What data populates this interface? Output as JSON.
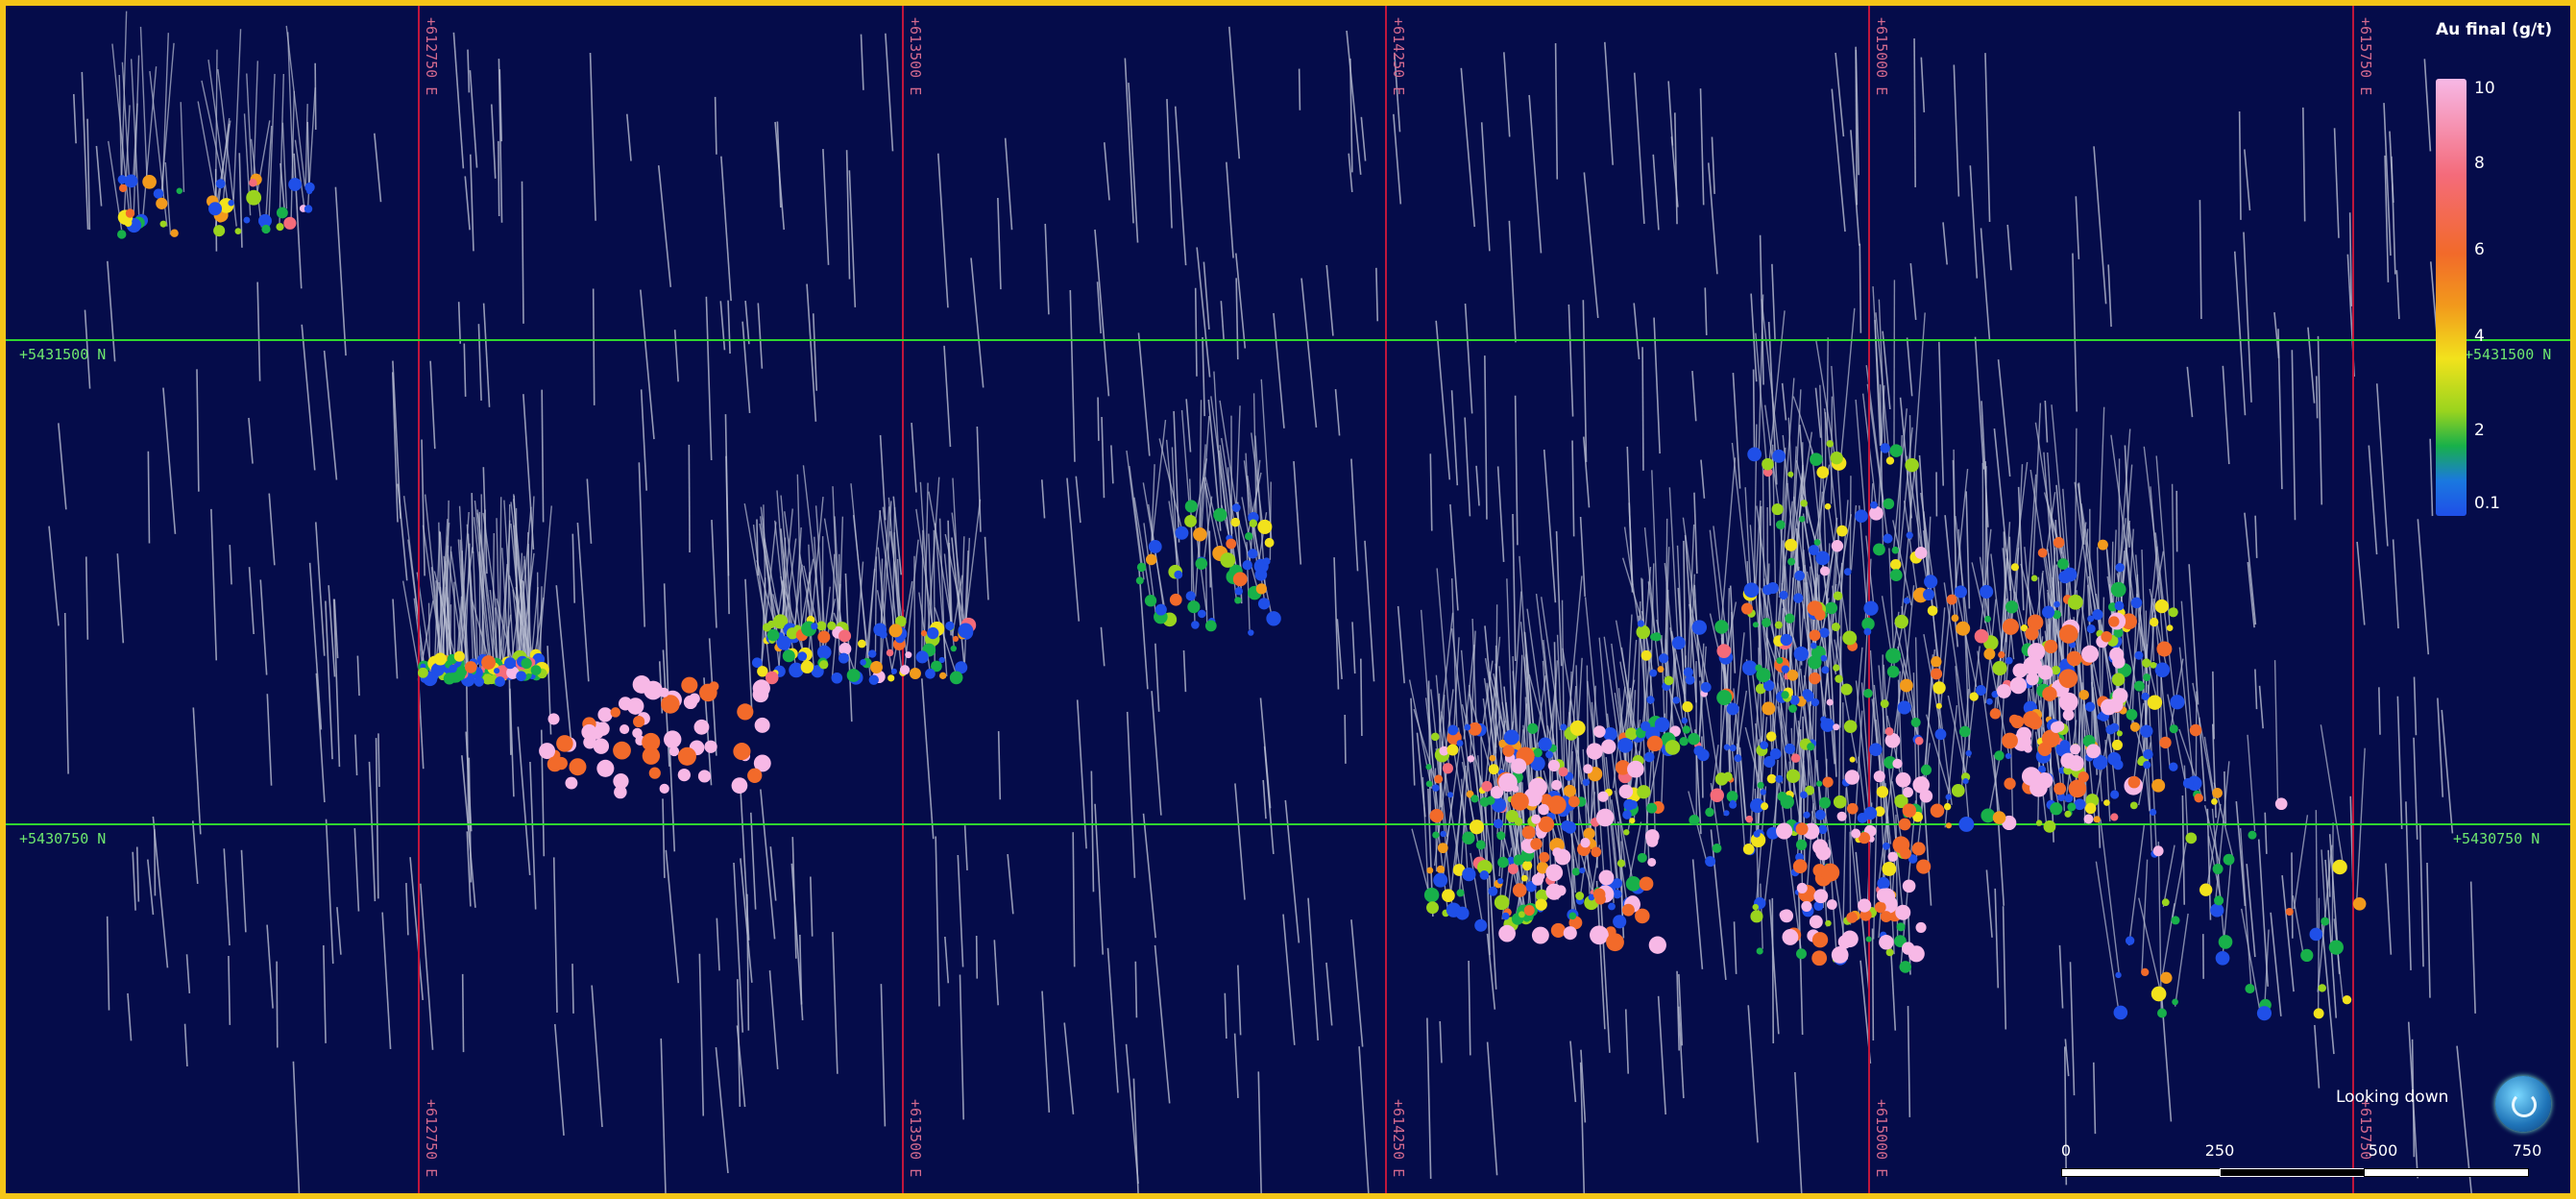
{
  "map": {
    "easting_labels": [
      "+612750 E",
      "+613500 E",
      "+614250 E",
      "+615000 E",
      "+615750 E"
    ],
    "northing_labels": [
      "+5431500 N",
      "+5430750 N"
    ],
    "view_label": "Looking down"
  },
  "legend": {
    "title": "Au final (g/t)",
    "ticks": [
      "10",
      "8",
      "6",
      "4",
      "2",
      "0.1"
    ],
    "colors": [
      "#1f4fe8",
      "#18b04a",
      "#9ad41e",
      "#f2e21c",
      "#f29a1c",
      "#f26a2a",
      "#f46b7a",
      "#f7b8e6"
    ]
  },
  "scale_bar": {
    "labels": [
      "0",
      "250",
      "500",
      "750"
    ]
  },
  "colors": {
    "background": "#050c4a",
    "frame": "#f5c518",
    "easting_line": "#c0163c",
    "northing_line": "#2fd62f",
    "trace": "#b9bed2"
  }
}
